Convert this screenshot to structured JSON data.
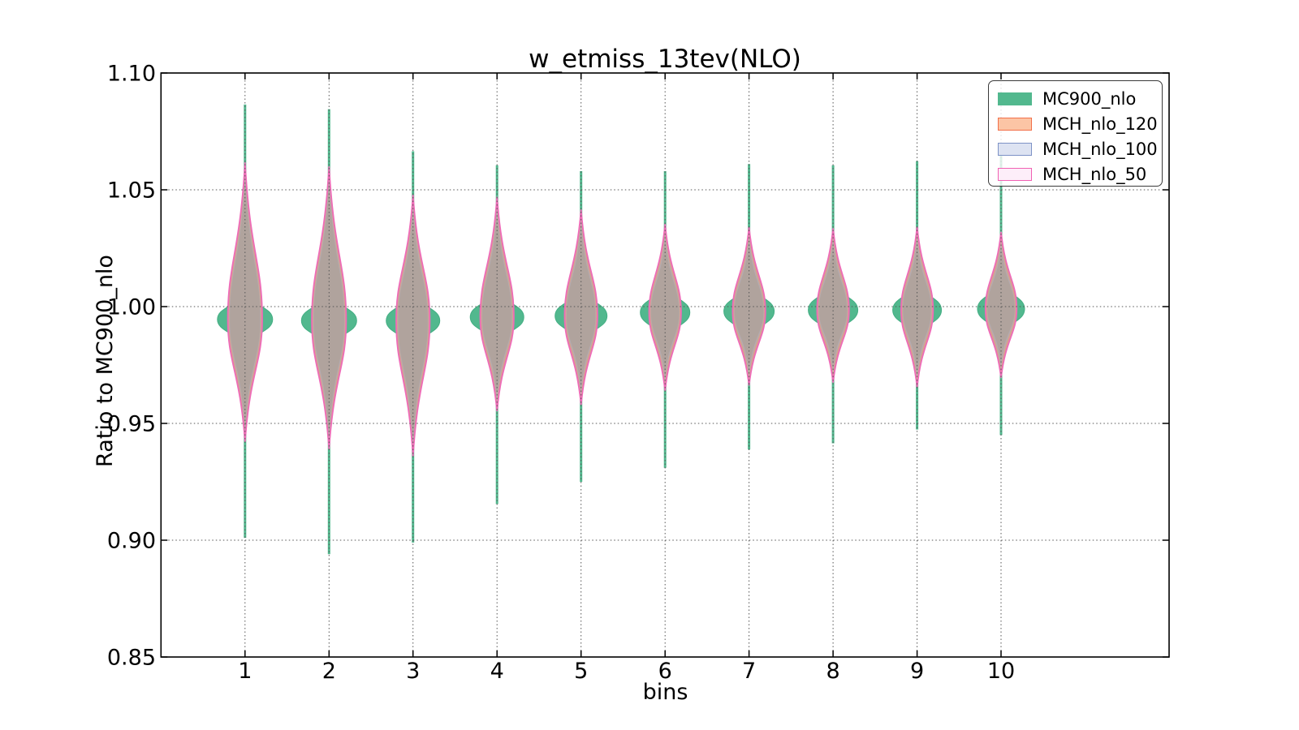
{
  "chart_data": {
    "type": "violin",
    "title": "w_etmiss_13tev(NLO)",
    "xlabel": "bins",
    "ylabel": "Ratio to MC900_nlo",
    "xlim": [
      0,
      12
    ],
    "ylim": [
      0.85,
      1.1
    ],
    "grid": true,
    "xtick_values": [
      1,
      2,
      3,
      4,
      5,
      6,
      7,
      8,
      9,
      10
    ],
    "xtick_labels": [
      "1",
      "2",
      "3",
      "4",
      "5",
      "6",
      "7",
      "8",
      "9",
      "10"
    ],
    "ytick_values": [
      1.1,
      1.05,
      1.0,
      0.95,
      0.9,
      0.85
    ],
    "ytick_labels": [
      "1.10",
      "1.05",
      "1.00",
      "0.95",
      "0.90",
      "0.85"
    ],
    "legend_position": "upper right",
    "legend": [
      {
        "label": "MC900_nlo",
        "fill": "#52b88e",
        "edge": "#52b88e"
      },
      {
        "label": "MCH_nlo_120",
        "fill": "#fcc5a5",
        "edge": "#f2704a"
      },
      {
        "label": "MCH_nlo_100",
        "fill": "#dde3f2",
        "edge": "#7d92c6"
      },
      {
        "label": "MCH_nlo_50",
        "fill": "#fdeef9",
        "edge": "#f161b3"
      }
    ],
    "colors": {
      "tail_and_bulge": "#52b88e",
      "bulge_stroke": "#43ae83",
      "body_overlap": "#b0a39d",
      "inner_sliver": "#d7a28e",
      "blue_sliver": "#b4abb0",
      "outline": "#ee6cb8",
      "grid": "#555555",
      "frame": "#000000"
    },
    "violins": [
      {
        "bin": 1,
        "tail_max": 1.0865,
        "tail_min": 0.901,
        "body_max": 1.0617,
        "body_min": 0.9422,
        "peak": 0.9945,
        "hw_outer": 34.0,
        "hw_body": 20.5
      },
      {
        "bin": 2,
        "tail_max": 1.0845,
        "tail_min": 0.894,
        "body_max": 1.06,
        "body_min": 0.939,
        "peak": 0.994,
        "hw_outer": 34.0,
        "hw_body": 20.5
      },
      {
        "bin": 3,
        "tail_max": 1.0665,
        "tail_min": 0.899,
        "body_max": 1.0478,
        "body_min": 0.936,
        "peak": 0.994,
        "hw_outer": 33.0,
        "hw_body": 20.0
      },
      {
        "bin": 4,
        "tail_max": 1.0605,
        "tail_min": 0.9155,
        "body_max": 1.047,
        "body_min": 0.9552,
        "peak": 0.9955,
        "hw_outer": 33.0,
        "hw_body": 20.0
      },
      {
        "bin": 5,
        "tail_max": 1.058,
        "tail_min": 0.925,
        "body_max": 1.0415,
        "body_min": 0.958,
        "peak": 0.996,
        "hw_outer": 32.0,
        "hw_body": 19.5
      },
      {
        "bin": 6,
        "tail_max": 1.058,
        "tail_min": 0.931,
        "body_max": 1.0353,
        "body_min": 0.964,
        "peak": 0.9975,
        "hw_outer": 30.5,
        "hw_body": 19.0
      },
      {
        "bin": 7,
        "tail_max": 1.061,
        "tail_min": 0.9388,
        "body_max": 1.034,
        "body_min": 0.9662,
        "peak": 0.998,
        "hw_outer": 31.0,
        "hw_body": 19.5
      },
      {
        "bin": 8,
        "tail_max": 1.0605,
        "tail_min": 0.9415,
        "body_max": 1.0335,
        "body_min": 0.9675,
        "peak": 0.9985,
        "hw_outer": 30.5,
        "hw_body": 19.0
      },
      {
        "bin": 9,
        "tail_max": 1.0623,
        "tail_min": 0.9474,
        "body_max": 1.0342,
        "body_min": 0.9655,
        "peak": 0.9985,
        "hw_outer": 30.0,
        "hw_body": 19.0
      },
      {
        "bin": 10,
        "tail_max": 1.065,
        "tail_min": 0.945,
        "body_max": 1.032,
        "body_min": 0.9695,
        "peak": 0.999,
        "hw_outer": 29.0,
        "hw_body": 18.5
      }
    ],
    "bulge_halfspan_ratio": 0.0128
  }
}
